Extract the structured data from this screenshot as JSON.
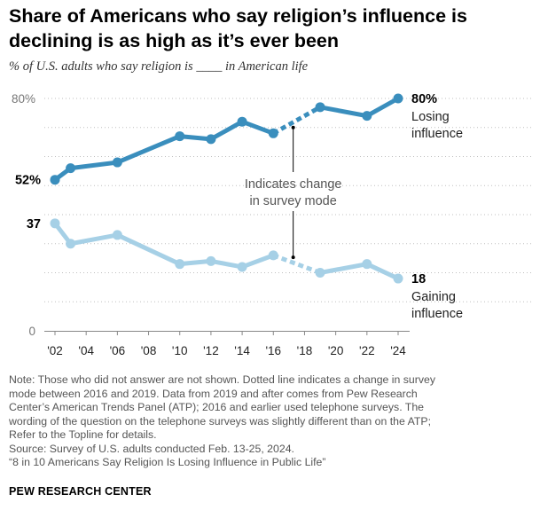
{
  "title": "Share of Americans who say religion’s influence is declining is as high as it’s ever been",
  "subtitle": "% of U.S. adults who say religion is ____ in American life",
  "chart_data": {
    "type": "line",
    "x": [
      2002,
      2003,
      2006,
      2010,
      2012,
      2014,
      2016,
      2019,
      2022,
      2024
    ],
    "x_tick_labels": [
      "'02",
      "'04",
      "'06",
      "'08",
      "'10",
      "'12",
      "'14",
      "'16",
      "'18",
      "'20",
      "'22",
      "'24"
    ],
    "x_ticks": [
      2002,
      2004,
      2006,
      2008,
      2010,
      2012,
      2014,
      2016,
      2018,
      2020,
      2022,
      2024
    ],
    "y_tick_labels": [
      "80%",
      "0"
    ],
    "y_ticks": [
      80,
      0
    ],
    "ylim": [
      0,
      80
    ],
    "grid": true,
    "series": [
      {
        "name": "Losing influence",
        "label_line1": "Losing",
        "label_line2": "influence",
        "start_label": "52%",
        "end_label": "80%",
        "color": "#3a8ebd",
        "values": [
          52,
          56,
          58,
          67,
          66,
          72,
          68,
          77,
          74,
          80
        ]
      },
      {
        "name": "Gaining influence",
        "label_line1": "Gaining",
        "label_line2": "influence",
        "start_label": "37",
        "end_label": "18",
        "color": "#a6d0e6",
        "values": [
          37,
          30,
          33,
          23,
          24,
          22,
          26,
          20,
          23,
          18
        ]
      }
    ],
    "mode_change": {
      "from": 2016,
      "to": 2019
    },
    "annotation_line1": "Indicates change",
    "annotation_line2": "in survey mode"
  },
  "notes": {
    "line1": "Note: Those who did not answer are not shown. Dotted line indicates a change in survey",
    "line2": "mode between 2016 and 2019. Data from 2019 and after comes from Pew Research",
    "line3": "Center’s American Trends Panel (ATP); 2016 and earlier used telephone surveys. The",
    "line4": "wording of the question on the telephone surveys was slightly different than on the ATP;",
    "line5": "Refer to the Topline for details.",
    "line6": "Source: Survey of U.S. adults conducted Feb. 13-25, 2024.",
    "line7": "“8 in 10 Americans Say Religion Is Losing Influence in Public Life”"
  },
  "brand": "PEW RESEARCH CENTER"
}
